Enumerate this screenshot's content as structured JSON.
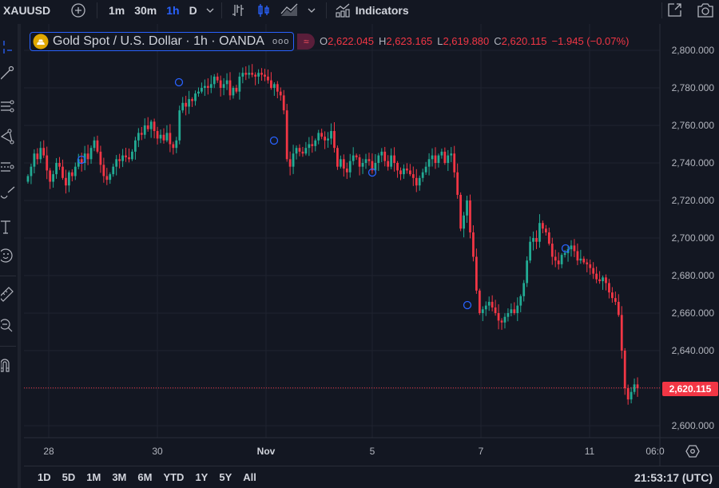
{
  "toolbar": {
    "symbol": "XAUUSD",
    "intervals": [
      "1m",
      "30m",
      "1h",
      "D"
    ],
    "active_interval": "1h",
    "indicators_label": "Indicators"
  },
  "legend": {
    "title": "Gold Spot / U.S. Dollar · 1h · OANDA",
    "dots": "ooo",
    "badge": "≈",
    "open_key": "O",
    "open": "2,622.045",
    "high_key": "H",
    "high": "2,623.165",
    "low_key": "L",
    "low": "2,619.880",
    "close_key": "C",
    "close": "2,620.115",
    "change": "−1.945 (−0.07%)"
  },
  "price_axis": {
    "labels": [
      "2,800.000",
      "2,780.000",
      "2,760.000",
      "2,740.000",
      "2,720.000",
      "2,700.000",
      "2,680.000",
      "2,660.000",
      "2,640.000",
      "2,620.115",
      "2,600.000"
    ],
    "last_price": "2,620.115"
  },
  "time_axis": {
    "labels": [
      "28",
      "30",
      "Nov",
      "5",
      "7",
      "11",
      "06:0"
    ]
  },
  "ranges": [
    "1D",
    "5D",
    "1M",
    "3M",
    "6M",
    "YTD",
    "1Y",
    "5Y",
    "All"
  ],
  "clock": "21:53:17 (UTC)",
  "colors": {
    "up": "#22ab94",
    "down": "#f23645",
    "background": "#131722",
    "grid": "#1f2330",
    "accent": "#2962ff"
  },
  "chart_data": {
    "type": "candlestick",
    "title": "Gold Spot / U.S. Dollar · 1h · OANDA",
    "symbol": "XAUUSD",
    "interval": "1h",
    "ylim": [
      2596,
      2808
    ],
    "y_ticks": [
      2600,
      2620,
      2640,
      2660,
      2680,
      2700,
      2720,
      2740,
      2760,
      2780,
      2800
    ],
    "x_ticks": [
      "28",
      "30",
      "Nov",
      "5",
      "7",
      "11",
      "06:0"
    ],
    "grid": true,
    "last_close": 2620.115,
    "ohlc_last": {
      "open": 2622.045,
      "high": 2623.165,
      "low": 2619.88,
      "close": 2620.115,
      "change": -1.945,
      "change_pct": -0.07
    },
    "closes": [
      2733,
      2738,
      2745,
      2742,
      2748,
      2744,
      2736,
      2730,
      2734,
      2740,
      2738,
      2732,
      2728,
      2735,
      2733,
      2738,
      2742,
      2740,
      2745,
      2742,
      2748,
      2752,
      2746,
      2739,
      2733,
      2731,
      2734,
      2738,
      2742,
      2741,
      2744,
      2743,
      2742,
      2746,
      2752,
      2756,
      2755,
      2760,
      2758,
      2762,
      2757,
      2753,
      2755,
      2752,
      2756,
      2750,
      2748,
      2752,
      2768,
      2772,
      2770,
      2774,
      2773,
      2777,
      2778,
      2780,
      2781,
      2780,
      2782,
      2786,
      2784,
      2780,
      2782,
      2784,
      2776,
      2780,
      2778,
      2786,
      2788,
      2787,
      2788,
      2787,
      2786,
      2788,
      2787,
      2786,
      2784,
      2780,
      2782,
      2778,
      2776,
      2768,
      2742,
      2738,
      2745,
      2748,
      2746,
      2745,
      2748,
      2750,
      2749,
      2752,
      2756,
      2754,
      2752,
      2753,
      2757,
      2748,
      2738,
      2742,
      2737,
      2735,
      2741,
      2744,
      2743,
      2738,
      2740,
      2742,
      2741,
      2736,
      2740,
      2744,
      2746,
      2741,
      2738,
      2744,
      2740,
      2736,
      2734,
      2737,
      2736,
      2734,
      2732,
      2728,
      2732,
      2735,
      2738,
      2742,
      2744,
      2740,
      2744,
      2746,
      2740,
      2744,
      2745,
      2735,
      2723,
      2705,
      2712,
      2720,
      2703,
      2690,
      2672,
      2660,
      2662,
      2664,
      2666,
      2663,
      2660,
      2656,
      2655,
      2658,
      2660,
      2662,
      2660,
      2664,
      2669,
      2676,
      2688,
      2698,
      2700,
      2698,
      2708,
      2705,
      2703,
      2697,
      2690,
      2688,
      2686,
      2691,
      2692,
      2694,
      2696,
      2693,
      2688,
      2689,
      2687,
      2686,
      2684,
      2681,
      2678,
      2677,
      2679,
      2676,
      2671,
      2668,
      2666,
      2659,
      2640,
      2620,
      2614,
      2618,
      2622,
      2620
    ]
  }
}
